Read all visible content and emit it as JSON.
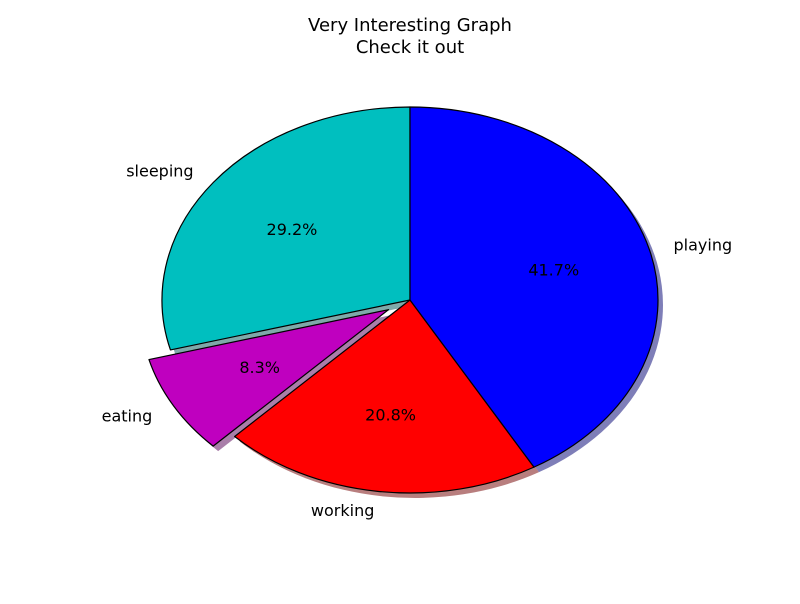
{
  "chart_data": {
    "type": "pie",
    "title": "Very Interesting Graph\nCheck it out",
    "categories": [
      "sleeping",
      "eating",
      "working",
      "playing"
    ],
    "values": [
      7,
      2,
      5,
      10
    ],
    "percent_labels": [
      "29.2%",
      "8.3%",
      "20.8%",
      "41.7%"
    ],
    "colors": [
      "#00bfbf",
      "#bf00bf",
      "#ff0000",
      "#0000ff"
    ],
    "explode": [
      0,
      0.1,
      0,
      0
    ],
    "start_angle_deg": 90,
    "shadow": true
  }
}
